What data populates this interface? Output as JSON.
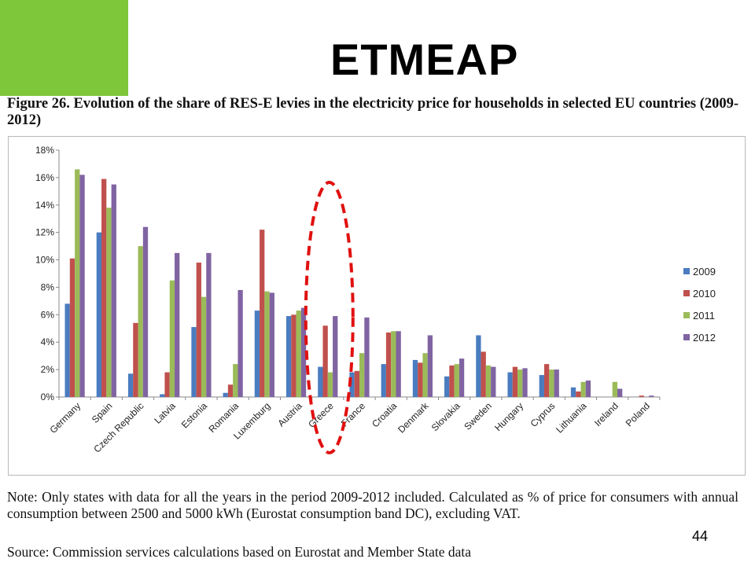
{
  "slide": {
    "title": "ETMEAP",
    "page_number": "44"
  },
  "figure": {
    "caption": "Figure 26. Evolution of the share of RES-E levies in the electricity price for households in selected EU countries (2009-2012)",
    "note": "Note: Only states with data for all the years in the period 2009-2012 included. Calculated as % of price for consumers with annual consumption between 2500 and 5000 kWh (Eurostat consumption band DC), excluding VAT.",
    "source": "Source: Commission services calculations based on Eurostat and Member State data"
  },
  "colors": {
    "green_block": "#7ec63a",
    "highlight_ellipse": "#e01010",
    "series_2009": "#4a7cc0",
    "series_2010": "#c0504d",
    "series_2011": "#9bbb59",
    "series_2012": "#8064a2"
  },
  "chart_data": {
    "type": "bar",
    "title": "",
    "xlabel": "",
    "ylabel": "",
    "ylim": [
      0,
      18
    ],
    "yticks": [
      "0%",
      "2%",
      "4%",
      "6%",
      "8%",
      "10%",
      "12%",
      "14%",
      "16%",
      "18%"
    ],
    "grid": false,
    "legend_position": "right",
    "highlighted_category": "Greece",
    "categories": [
      "Germany",
      "Spain",
      "Czech Republic",
      "Latvia",
      "Estonia",
      "Romania",
      "Luxemburg",
      "Austria",
      "Greece",
      "France",
      "Croatia",
      "Denmark",
      "Slovakia",
      "Sweden",
      "Hungary",
      "Cyprus",
      "Lithuania",
      "Ireland",
      "Poland"
    ],
    "series": [
      {
        "name": "2009",
        "color": "#4a7cc0",
        "values": [
          6.8,
          12.0,
          1.7,
          0.2,
          5.1,
          0.3,
          6.3,
          5.9,
          2.2,
          1.8,
          2.4,
          2.7,
          1.5,
          4.5,
          1.8,
          1.6,
          0.7,
          0.0,
          0.0
        ]
      },
      {
        "name": "2010",
        "color": "#c0504d",
        "values": [
          10.1,
          15.9,
          5.4,
          1.8,
          9.8,
          0.9,
          12.2,
          6.0,
          5.2,
          1.9,
          4.7,
          2.5,
          2.3,
          3.3,
          2.2,
          2.4,
          0.4,
          0.0,
          0.1
        ]
      },
      {
        "name": "2011",
        "color": "#9bbb59",
        "values": [
          16.6,
          13.8,
          11.0,
          8.5,
          7.3,
          2.4,
          7.7,
          6.3,
          1.8,
          3.2,
          4.8,
          3.2,
          2.4,
          2.3,
          2.0,
          2.0,
          1.1,
          1.1,
          0.0
        ]
      },
      {
        "name": "2012",
        "color": "#8064a2",
        "values": [
          16.2,
          15.5,
          12.4,
          10.5,
          10.5,
          7.8,
          7.6,
          6.5,
          5.9,
          5.8,
          4.8,
          4.5,
          2.8,
          2.2,
          2.1,
          2.0,
          1.2,
          0.6,
          0.1
        ]
      }
    ]
  }
}
